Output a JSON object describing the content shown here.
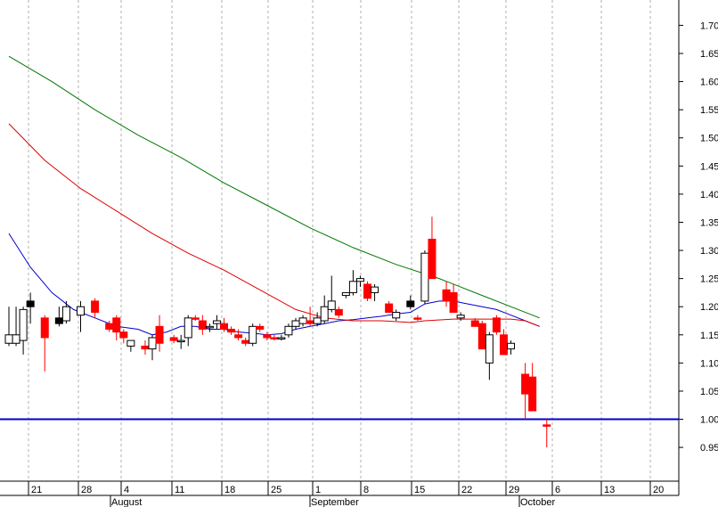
{
  "chart_data": {
    "type": "candlestick",
    "y_axis": {
      "ylim": [
        0.89,
        1.745
      ],
      "ticks": [
        0.95,
        1.0,
        1.05,
        1.1,
        1.15,
        1.2,
        1.25,
        1.3,
        1.35,
        1.4,
        1.45,
        1.5,
        1.55,
        1.6,
        1.65,
        1.7
      ]
    },
    "x_axis": {
      "day_labels": [
        "21",
        "28",
        "4",
        "11",
        "18",
        "25",
        "1",
        "8",
        "15",
        "22",
        "29",
        "6",
        "13",
        "20"
      ],
      "month_labels": [
        "August",
        "September",
        "October"
      ]
    },
    "reference_line": {
      "value": 1.0,
      "color": "#0000cc"
    },
    "colors": {
      "up_body": "#ffffff",
      "down_body": "#ff0000",
      "black_body": "#000000",
      "ma_short": "#0000cc",
      "ma_mid": "#dd0000",
      "ma_long": "#007700",
      "grid": "#b0b0b0"
    },
    "candles": [
      {
        "x": 0,
        "open": 1.135,
        "high": 1.2,
        "low": 1.13,
        "close": 1.15,
        "color": "up"
      },
      {
        "x": 1,
        "open": 1.135,
        "high": 1.2,
        "low": 1.13,
        "close": 1.15,
        "color": "up"
      },
      {
        "x": 2,
        "open": 1.14,
        "high": 1.2,
        "low": 1.115,
        "close": 1.195,
        "color": "up"
      },
      {
        "x": 3,
        "open": 1.2,
        "high": 1.225,
        "low": 1.17,
        "close": 1.21,
        "color": "black"
      },
      {
        "x": 5,
        "open": 1.18,
        "high": 1.185,
        "low": 1.085,
        "close": 1.145,
        "color": "down"
      },
      {
        "x": 7,
        "open": 1.17,
        "high": 1.2,
        "low": 1.165,
        "close": 1.18,
        "color": "black"
      },
      {
        "x": 8,
        "open": 1.175,
        "high": 1.21,
        "low": 1.17,
        "close": 1.2,
        "color": "up"
      },
      {
        "x": 10,
        "open": 1.185,
        "high": 1.21,
        "low": 1.155,
        "close": 1.2,
        "color": "up"
      },
      {
        "x": 12,
        "open": 1.21,
        "high": 1.215,
        "low": 1.18,
        "close": 1.19,
        "color": "down"
      },
      {
        "x": 14,
        "open": 1.17,
        "high": 1.175,
        "low": 1.155,
        "close": 1.16,
        "color": "down"
      },
      {
        "x": 15,
        "open": 1.18,
        "high": 1.185,
        "low": 1.14,
        "close": 1.155,
        "color": "down"
      },
      {
        "x": 16,
        "open": 1.155,
        "high": 1.16,
        "low": 1.135,
        "close": 1.145,
        "color": "down"
      },
      {
        "x": 17,
        "open": 1.13,
        "high": 1.14,
        "low": 1.12,
        "close": 1.14,
        "color": "up"
      },
      {
        "x": 19,
        "open": 1.13,
        "high": 1.14,
        "low": 1.115,
        "close": 1.125,
        "color": "down"
      },
      {
        "x": 20,
        "open": 1.125,
        "high": 1.15,
        "low": 1.105,
        "close": 1.145,
        "color": "up"
      },
      {
        "x": 21,
        "open": 1.165,
        "high": 1.185,
        "low": 1.12,
        "close": 1.135,
        "color": "down"
      },
      {
        "x": 23,
        "open": 1.145,
        "high": 1.15,
        "low": 1.135,
        "close": 1.14,
        "color": "down"
      },
      {
        "x": 24,
        "open": 1.14,
        "high": 1.15,
        "low": 1.125,
        "close": 1.14,
        "color": "up"
      },
      {
        "x": 25,
        "open": 1.145,
        "high": 1.185,
        "low": 1.13,
        "close": 1.18,
        "color": "up"
      },
      {
        "x": 26,
        "open": 1.18,
        "high": 1.185,
        "low": 1.175,
        "close": 1.18,
        "color": "down"
      },
      {
        "x": 27,
        "open": 1.175,
        "high": 1.185,
        "low": 1.15,
        "close": 1.16,
        "color": "down"
      },
      {
        "x": 28,
        "open": 1.165,
        "high": 1.17,
        "low": 1.155,
        "close": 1.165,
        "color": "up"
      },
      {
        "x": 29,
        "open": 1.17,
        "high": 1.185,
        "low": 1.16,
        "close": 1.175,
        "color": "up"
      },
      {
        "x": 30,
        "open": 1.17,
        "high": 1.18,
        "low": 1.155,
        "close": 1.16,
        "color": "down"
      },
      {
        "x": 31,
        "open": 1.155,
        "high": 1.165,
        "low": 1.15,
        "close": 1.16,
        "color": "down"
      },
      {
        "x": 32,
        "open": 1.15,
        "high": 1.16,
        "low": 1.14,
        "close": 1.145,
        "color": "down"
      },
      {
        "x": 33,
        "open": 1.14,
        "high": 1.145,
        "low": 1.13,
        "close": 1.135,
        "color": "down"
      },
      {
        "x": 34,
        "open": 1.135,
        "high": 1.17,
        "low": 1.13,
        "close": 1.165,
        "color": "up"
      },
      {
        "x": 35,
        "open": 1.165,
        "high": 1.17,
        "low": 1.155,
        "close": 1.16,
        "color": "down"
      },
      {
        "x": 36,
        "open": 1.15,
        "high": 1.155,
        "low": 1.14,
        "close": 1.145,
        "color": "down"
      },
      {
        "x": 37,
        "open": 1.145,
        "high": 1.15,
        "low": 1.14,
        "close": 1.145,
        "color": "down"
      },
      {
        "x": 38,
        "open": 1.145,
        "high": 1.15,
        "low": 1.14,
        "close": 1.145,
        "color": "up"
      },
      {
        "x": 39,
        "open": 1.15,
        "high": 1.17,
        "low": 1.145,
        "close": 1.165,
        "color": "up"
      },
      {
        "x": 40,
        "open": 1.165,
        "high": 1.18,
        "low": 1.16,
        "close": 1.175,
        "color": "up"
      },
      {
        "x": 41,
        "open": 1.17,
        "high": 1.185,
        "low": 1.165,
        "close": 1.18,
        "color": "up"
      },
      {
        "x": 42,
        "open": 1.17,
        "high": 1.2,
        "low": 1.165,
        "close": 1.175,
        "color": "down"
      },
      {
        "x": 43,
        "open": 1.17,
        "high": 1.19,
        "low": 1.165,
        "close": 1.18,
        "color": "up"
      },
      {
        "x": 44,
        "open": 1.175,
        "high": 1.22,
        "low": 1.17,
        "close": 1.2,
        "color": "up"
      },
      {
        "x": 45,
        "open": 1.195,
        "high": 1.255,
        "low": 1.19,
        "close": 1.21,
        "color": "up"
      },
      {
        "x": 46,
        "open": 1.195,
        "high": 1.2,
        "low": 1.18,
        "close": 1.185,
        "color": "down"
      },
      {
        "x": 47,
        "open": 1.22,
        "high": 1.225,
        "low": 1.215,
        "close": 1.225,
        "color": "up"
      },
      {
        "x": 48,
        "open": 1.225,
        "high": 1.265,
        "low": 1.22,
        "close": 1.245,
        "color": "up"
      },
      {
        "x": 49,
        "open": 1.245,
        "high": 1.255,
        "low": 1.235,
        "close": 1.25,
        "color": "up"
      },
      {
        "x": 50,
        "open": 1.24,
        "high": 1.245,
        "low": 1.21,
        "close": 1.215,
        "color": "down"
      },
      {
        "x": 51,
        "open": 1.225,
        "high": 1.24,
        "low": 1.21,
        "close": 1.235,
        "color": "up"
      },
      {
        "x": 53,
        "open": 1.205,
        "high": 1.21,
        "low": 1.19,
        "close": 1.19,
        "color": "down"
      },
      {
        "x": 54,
        "open": 1.18,
        "high": 1.195,
        "low": 1.175,
        "close": 1.19,
        "color": "up"
      },
      {
        "x": 56,
        "open": 1.2,
        "high": 1.22,
        "low": 1.195,
        "close": 1.21,
        "color": "black"
      },
      {
        "x": 57,
        "open": 1.18,
        "high": 1.185,
        "low": 1.175,
        "close": 1.18,
        "color": "down"
      },
      {
        "x": 58,
        "open": 1.21,
        "high": 1.3,
        "low": 1.205,
        "close": 1.295,
        "color": "up"
      },
      {
        "x": 59,
        "open": 1.32,
        "high": 1.36,
        "low": 1.25,
        "close": 1.25,
        "color": "down"
      },
      {
        "x": 61,
        "open": 1.23,
        "high": 1.245,
        "low": 1.2,
        "close": 1.21,
        "color": "down"
      },
      {
        "x": 62,
        "open": 1.225,
        "high": 1.24,
        "low": 1.19,
        "close": 1.19,
        "color": "down"
      },
      {
        "x": 63,
        "open": 1.18,
        "high": 1.19,
        "low": 1.175,
        "close": 1.185,
        "color": "up"
      },
      {
        "x": 65,
        "open": 1.175,
        "high": 1.18,
        "low": 1.165,
        "close": 1.165,
        "color": "down"
      },
      {
        "x": 66,
        "open": 1.17,
        "high": 1.175,
        "low": 1.125,
        "close": 1.125,
        "color": "down"
      },
      {
        "x": 67,
        "open": 1.1,
        "high": 1.155,
        "low": 1.07,
        "close": 1.15,
        "color": "up"
      },
      {
        "x": 68,
        "open": 1.18,
        "high": 1.185,
        "low": 1.15,
        "close": 1.155,
        "color": "down"
      },
      {
        "x": 69,
        "open": 1.15,
        "high": 1.16,
        "low": 1.115,
        "close": 1.115,
        "color": "down"
      },
      {
        "x": 70,
        "open": 1.125,
        "high": 1.14,
        "low": 1.115,
        "close": 1.135,
        "color": "up"
      },
      {
        "x": 72,
        "open": 1.08,
        "high": 1.1,
        "low": 1.0,
        "close": 1.045,
        "color": "down"
      },
      {
        "x": 73,
        "open": 1.075,
        "high": 1.1,
        "low": 1.015,
        "close": 1.015,
        "color": "down"
      },
      {
        "x": 75,
        "open": 0.99,
        "high": 1.0,
        "low": 0.95,
        "close": 0.99,
        "color": "down"
      }
    ],
    "series": [
      {
        "color": "#0000cc",
        "points": [
          [
            0,
            1.33
          ],
          [
            3,
            1.27
          ],
          [
            6,
            1.225
          ],
          [
            9,
            1.195
          ],
          [
            12,
            1.18
          ],
          [
            15,
            1.165
          ],
          [
            18,
            1.16
          ],
          [
            20,
            1.15
          ],
          [
            22,
            1.155
          ],
          [
            24,
            1.165
          ],
          [
            26,
            1.165
          ],
          [
            28,
            1.16
          ],
          [
            30,
            1.16
          ],
          [
            32,
            1.155
          ],
          [
            34,
            1.153
          ],
          [
            36,
            1.15
          ],
          [
            38,
            1.152
          ],
          [
            40,
            1.16
          ],
          [
            42,
            1.165
          ],
          [
            44,
            1.17
          ],
          [
            46,
            1.175
          ],
          [
            48,
            1.177
          ],
          [
            50,
            1.18
          ],
          [
            52,
            1.183
          ],
          [
            54,
            1.187
          ],
          [
            56,
            1.19
          ],
          [
            58,
            1.205
          ],
          [
            60,
            1.21
          ],
          [
            62,
            1.21
          ],
          [
            64,
            1.205
          ],
          [
            66,
            1.2
          ],
          [
            68,
            1.195
          ],
          [
            70,
            1.185
          ],
          [
            72,
            1.175
          ],
          [
            74,
            1.165
          ]
        ]
      },
      {
        "color": "#dd0000",
        "points": [
          [
            0,
            1.525
          ],
          [
            5,
            1.46
          ],
          [
            10,
            1.41
          ],
          [
            15,
            1.37
          ],
          [
            20,
            1.33
          ],
          [
            25,
            1.295
          ],
          [
            30,
            1.265
          ],
          [
            35,
            1.23
          ],
          [
            40,
            1.195
          ],
          [
            44,
            1.18
          ],
          [
            48,
            1.175
          ],
          [
            52,
            1.175
          ],
          [
            56,
            1.172
          ],
          [
            58,
            1.175
          ],
          [
            62,
            1.178
          ],
          [
            66,
            1.178
          ],
          [
            70,
            1.178
          ],
          [
            72,
            1.175
          ],
          [
            74,
            1.165
          ]
        ]
      },
      {
        "color": "#007700",
        "points": [
          [
            0,
            1.645
          ],
          [
            6,
            1.6
          ],
          [
            12,
            1.55
          ],
          [
            18,
            1.505
          ],
          [
            24,
            1.465
          ],
          [
            30,
            1.42
          ],
          [
            36,
            1.38
          ],
          [
            42,
            1.34
          ],
          [
            48,
            1.305
          ],
          [
            54,
            1.275
          ],
          [
            60,
            1.25
          ],
          [
            66,
            1.22
          ],
          [
            70,
            1.2
          ],
          [
            74,
            1.18
          ]
        ]
      }
    ]
  }
}
